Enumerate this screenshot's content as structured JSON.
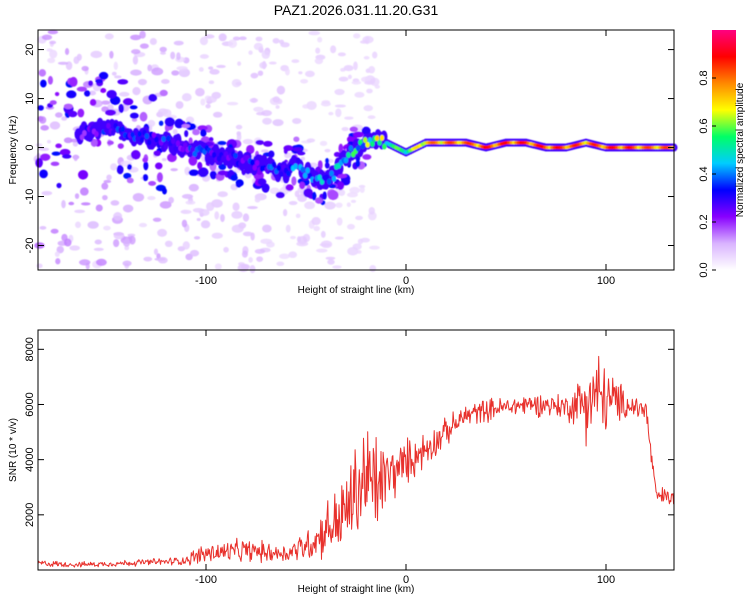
{
  "title": "PAZ1.2026.031.11.20.G31",
  "colors": {
    "snr_line": "#e8312c",
    "colormap": [
      "#ffffff",
      "#d9b3ff",
      "#8800ff",
      "#0000ff",
      "#00ccff",
      "#00ff66",
      "#ffff00",
      "#ff8800",
      "#ff0000",
      "#ff0080"
    ]
  },
  "chart_data": [
    {
      "type": "heatmap",
      "id": "spectrogram",
      "xlabel": "Height of straight line (km)",
      "ylabel": "Frequency (Hz)",
      "xlim": [
        -184,
        134
      ],
      "ylim": [
        -25,
        24
      ],
      "xticks": [
        -100,
        0,
        100
      ],
      "xtick_labels": [
        "-100",
        "0",
        "100"
      ],
      "yticks": [
        -20,
        -10,
        0,
        10,
        20
      ],
      "ytick_labels": [
        "-20",
        "-10",
        "0",
        "10",
        "20"
      ],
      "colorbar": {
        "label": "Normalized spectral amplitude",
        "range": [
          0,
          1
        ],
        "ticks": [
          0.0,
          0.2,
          0.4,
          0.6,
          0.8
        ],
        "tick_labels": [
          "0.0",
          "0.2",
          "0.4",
          "0.6",
          "0.8"
        ]
      },
      "ridge": {
        "height_km": [
          -160,
          -150,
          -140,
          -130,
          -120,
          -110,
          -100,
          -90,
          -80,
          -70,
          -60,
          -55,
          -50,
          -45,
          -40,
          -35,
          -30,
          -25,
          -20,
          -15,
          -10,
          -5,
          0,
          5,
          10,
          20,
          30,
          40,
          50,
          60,
          70,
          80,
          90,
          100,
          110,
          120,
          134
        ],
        "frequency_hz": [
          3,
          4,
          3,
          2,
          1,
          0,
          -1,
          -2,
          -3,
          -4,
          -5,
          -3,
          -5,
          -6,
          -7,
          -5,
          -2,
          0,
          1,
          2,
          1,
          0,
          -1,
          0,
          1,
          1,
          1,
          0,
          1,
          1,
          0,
          0,
          1,
          0,
          0,
          0,
          0
        ],
        "amplitude": [
          0.25,
          0.3,
          0.3,
          0.3,
          0.3,
          0.3,
          0.3,
          0.3,
          0.3,
          0.3,
          0.35,
          0.35,
          0.35,
          0.4,
          0.4,
          0.4,
          0.45,
          0.5,
          0.5,
          0.55,
          0.55,
          0.6,
          0.6,
          0.7,
          0.8,
          0.85,
          0.85,
          0.9,
          0.9,
          0.9,
          0.9,
          0.9,
          0.85,
          0.9,
          0.9,
          0.85,
          0.85
        ]
      }
    },
    {
      "type": "line",
      "id": "snr",
      "xlabel": "Height of straight line (km)",
      "ylabel": "SNR (10 * v/v)",
      "xlim": [
        -184,
        134
      ],
      "ylim": [
        0,
        8700
      ],
      "xticks": [
        -100,
        0,
        100
      ],
      "xtick_labels": [
        "-100",
        "0",
        "100"
      ],
      "yticks": [
        2000,
        4000,
        6000,
        8000
      ],
      "ytick_labels": [
        "2000",
        "4000",
        "6000",
        "8000"
      ],
      "series": [
        {
          "name": "SNR",
          "x": [
            -184,
            -170,
            -160,
            -150,
            -140,
            -130,
            -120,
            -110,
            -105,
            -100,
            -90,
            -80,
            -70,
            -60,
            -50,
            -45,
            -40,
            -35,
            -30,
            -25,
            -20,
            -15,
            -10,
            -5,
            0,
            10,
            20,
            25,
            30,
            40,
            50,
            60,
            70,
            80,
            85,
            90,
            95,
            100,
            110,
            115,
            120,
            125,
            134
          ],
          "y": [
            250,
            200,
            200,
            220,
            250,
            280,
            300,
            350,
            500,
            600,
            650,
            700,
            650,
            600,
            900,
            1100,
            1500,
            1700,
            2100,
            2800,
            3300,
            3000,
            3400,
            3600,
            3900,
            4400,
            5000,
            5300,
            5600,
            5800,
            5900,
            6000,
            6000,
            5900,
            6000,
            6200,
            6300,
            6200,
            6000,
            5900,
            5800,
            2700,
            2600
          ],
          "noise_amplitude": [
            150,
            120,
            120,
            120,
            140,
            150,
            170,
            200,
            400,
            450,
            500,
            500,
            450,
            400,
            700,
            900,
            1200,
            1600,
            1800,
            2200,
            2800,
            2500,
            1400,
            1200,
            1000,
            800,
            600,
            550,
            550,
            500,
            450,
            500,
            500,
            600,
            900,
            1800,
            2200,
            1500,
            600,
            600,
            600,
            400,
            400
          ]
        }
      ]
    }
  ]
}
